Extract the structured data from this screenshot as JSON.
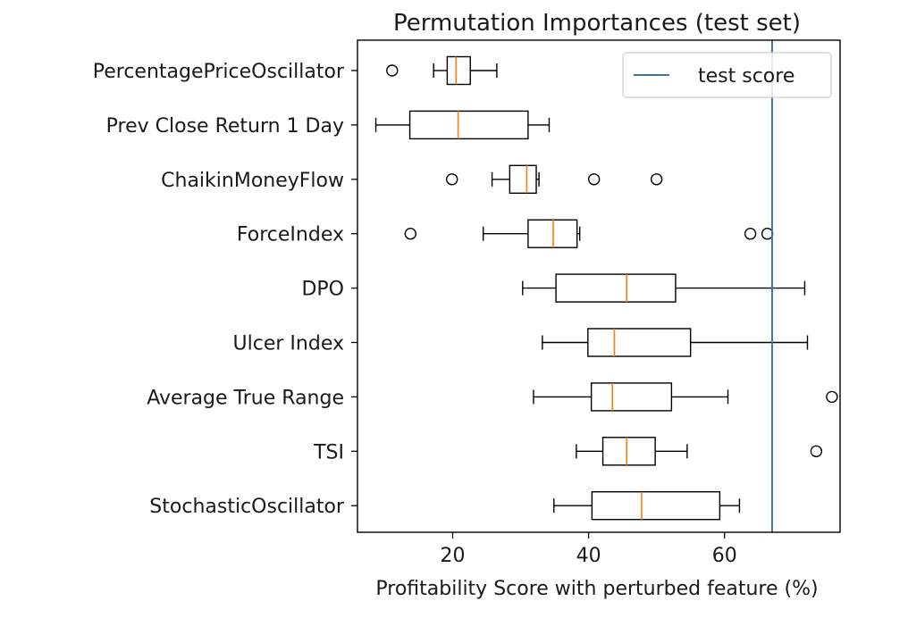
{
  "chart_data": {
    "type": "boxplot",
    "orientation": "horizontal",
    "title": "Permutation Importances (test set)",
    "xlabel": "Profitability Score with perturbed feature (%)",
    "ylabel": "",
    "xlim": [
      6,
      77
    ],
    "xticks": [
      20,
      40,
      60
    ],
    "xtick_labels": [
      "20",
      "40",
      "60"
    ],
    "grid": false,
    "legend": {
      "position": "top-right",
      "entries": [
        {
          "label": "test score",
          "color": "#3b75af"
        }
      ]
    },
    "colors": {
      "box": "#000000",
      "median": "#ff7f0e",
      "reference_line": "#3b75af"
    },
    "reference_line": {
      "label": "test score",
      "value": 67.0
    },
    "categories": [
      "PercentagePriceOscillator",
      "Prev Close Return 1 Day",
      "ChaikinMoneyFlow",
      "ForceIndex",
      "DPO",
      "Ulcer Index",
      "Average True Range",
      "TSI",
      "StochasticOscillator"
    ],
    "boxes": [
      {
        "label": "PercentagePriceOscillator",
        "whisker_low": 17.2,
        "q1": 19.2,
        "median": 20.5,
        "q3": 22.6,
        "whisker_high": 26.5,
        "outliers": [
          11.1
        ]
      },
      {
        "label": "Prev Close Return 1 Day",
        "whisker_low": 8.7,
        "q1": 13.7,
        "median": 20.8,
        "q3": 31.1,
        "whisker_high": 34.2,
        "outliers": []
      },
      {
        "label": "ChaikinMoneyFlow",
        "whisker_low": 25.8,
        "q1": 28.4,
        "median": 30.9,
        "q3": 32.3,
        "whisker_high": 32.7,
        "outliers": [
          19.9,
          40.8,
          50.0
        ]
      },
      {
        "label": "ForceIndex",
        "whisker_low": 24.5,
        "q1": 31.1,
        "median": 34.8,
        "q3": 38.3,
        "whisker_high": 38.7,
        "outliers": [
          13.8,
          63.8,
          66.3
        ]
      },
      {
        "label": "DPO",
        "whisker_low": 30.3,
        "q1": 35.2,
        "median": 45.6,
        "q3": 52.8,
        "whisker_high": 71.8,
        "outliers": []
      },
      {
        "label": "Ulcer Index",
        "whisker_low": 33.2,
        "q1": 39.9,
        "median": 43.8,
        "q3": 55.0,
        "whisker_high": 72.2,
        "outliers": []
      },
      {
        "label": "Average True Range",
        "whisker_low": 31.9,
        "q1": 40.4,
        "median": 43.5,
        "q3": 52.2,
        "whisker_high": 60.5,
        "outliers": [
          75.8
        ]
      },
      {
        "label": "TSI",
        "whisker_low": 38.2,
        "q1": 42.1,
        "median": 45.6,
        "q3": 49.8,
        "whisker_high": 54.5,
        "outliers": [
          73.5
        ]
      },
      {
        "label": "StochasticOscillator",
        "whisker_low": 34.9,
        "q1": 40.5,
        "median": 47.8,
        "q3": 59.3,
        "whisker_high": 62.2,
        "outliers": []
      }
    ]
  }
}
